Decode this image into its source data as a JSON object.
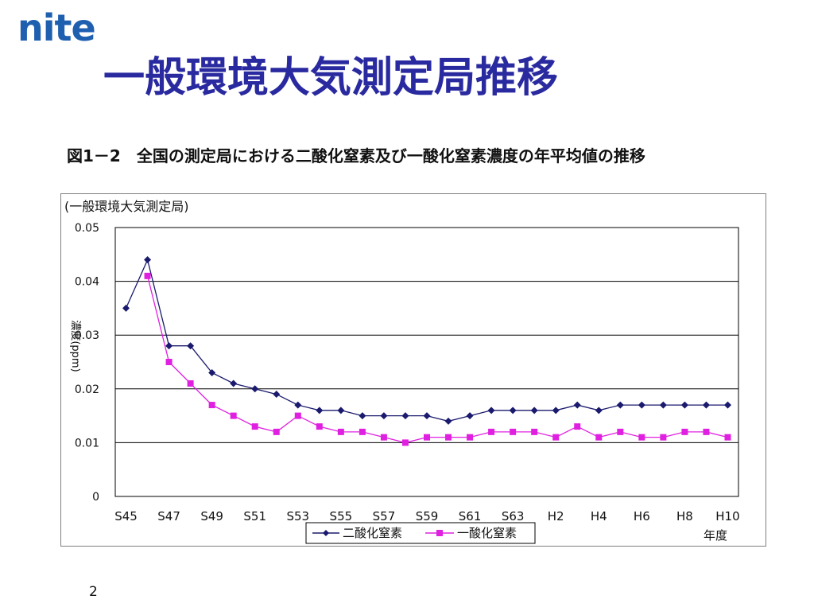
{
  "slide": {
    "logo_text": "nite",
    "title": "一般環境大気測定局推移",
    "figure_caption": "図1－2　全国の測定局における二酸化窒素及び一酸化窒素濃度の年平均値の推移",
    "page_number": "2"
  },
  "colors": {
    "title": "#2a2aa0",
    "logo": "#1f5fb0",
    "series_no2": "#1a1a6e",
    "series_no": "#e020e0"
  },
  "chart_data": {
    "type": "line",
    "subtitle": "(一般環境大気測定局)",
    "xlabel": "年度",
    "ylabel": "濃度(ppm)",
    "ylim": [
      0,
      0.05
    ],
    "y_ticks": [
      "0",
      "0.01",
      "0.02",
      "0.03",
      "0.04",
      "0.05"
    ],
    "grid": true,
    "legend_position": "bottom-center",
    "x_tick_labels": [
      "S45",
      "S47",
      "S49",
      "S51",
      "S53",
      "S55",
      "S57",
      "S59",
      "S61",
      "S63",
      "H2",
      "H4",
      "H6",
      "H8",
      "H10"
    ],
    "categories": [
      "S45",
      "S46",
      "S47",
      "S48",
      "S49",
      "S50",
      "S51",
      "S52",
      "S53",
      "S54",
      "S55",
      "S56",
      "S57",
      "S58",
      "S59",
      "S60",
      "S61",
      "S62",
      "S63",
      "H1",
      "H2",
      "H3",
      "H4",
      "H5",
      "H6",
      "H7",
      "H8",
      "H9",
      "H10"
    ],
    "series": [
      {
        "name": "二酸化窒素",
        "marker": "diamond",
        "values": [
          0.035,
          0.044,
          0.028,
          0.028,
          0.023,
          0.021,
          0.02,
          0.019,
          0.017,
          0.016,
          0.016,
          0.015,
          0.015,
          0.015,
          0.015,
          0.014,
          0.015,
          0.016,
          0.016,
          0.016,
          0.016,
          0.017,
          0.016,
          0.017,
          0.017,
          0.017,
          0.017,
          0.017,
          0.017
        ]
      },
      {
        "name": "一酸化窒素",
        "marker": "square",
        "values": [
          null,
          0.041,
          0.025,
          0.021,
          0.017,
          0.015,
          0.013,
          0.012,
          0.015,
          0.013,
          0.012,
          0.012,
          0.011,
          0.01,
          0.011,
          0.011,
          0.011,
          0.012,
          0.012,
          0.012,
          0.011,
          0.013,
          0.011,
          0.012,
          0.011,
          0.011,
          0.012,
          0.012,
          0.011
        ]
      }
    ]
  }
}
